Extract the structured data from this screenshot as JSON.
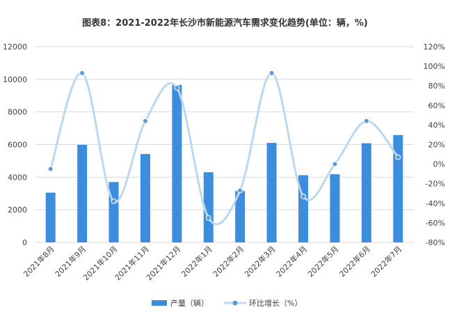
{
  "title": "图表8：2021-2022年长沙市新能源汽车需求变化趋势(单位：辆，%)",
  "chart_data": {
    "type": "bar",
    "title": "图表8：2021-2022年长沙市新能源汽车需求变化趋势(单位：辆，%)",
    "categories": [
      "2021年8月",
      "2021年9月",
      "2021年10月",
      "2021年11月",
      "2021年12月",
      "2022年1月",
      "2022年2月",
      "2022年3月",
      "2022年4月",
      "2022年5月",
      "2022年6月",
      "2022年7月"
    ],
    "series": [
      {
        "name": "产量（辆）",
        "type": "bar",
        "axis": "left",
        "color": "#3C8DDE",
        "values": [
          3050,
          5980,
          3700,
          5420,
          9650,
          4300,
          3150,
          6100,
          4120,
          4180,
          6080,
          6580
        ]
      },
      {
        "name": "环比增长（%）",
        "type": "line",
        "axis": "right",
        "color": "#5B9BD5",
        "smooth": true,
        "values": [
          -5,
          93,
          -38,
          44,
          78,
          -55,
          -27,
          93,
          -33,
          0,
          44,
          7
        ]
      }
    ],
    "ylim_left": [
      0,
      12000
    ],
    "yticks_left": [
      "0",
      "2000",
      "4000",
      "6000",
      "8000",
      "10000",
      "12000"
    ],
    "ylim_right": [
      -80,
      120
    ],
    "yticks_right": [
      "-80%",
      "-60%",
      "-40%",
      "-20%",
      "0%",
      "20%",
      "40%",
      "60%",
      "80%",
      "100%",
      "120%"
    ],
    "grid": true,
    "legend": "bottom-center"
  }
}
